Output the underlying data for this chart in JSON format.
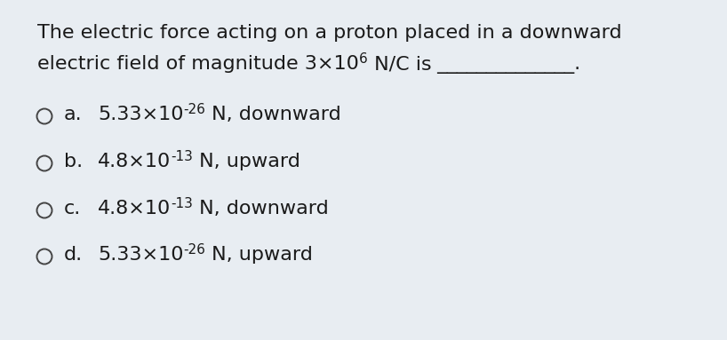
{
  "bg_color": "#e8edf2",
  "card_color": "#eef1f6",
  "question_line1": "The electric force acting on a proton placed in a downward",
  "question_line2_pre": "electric field of magnitude 3×10",
  "question_line2_sup": "6",
  "question_line2_post": " N/C is",
  "question_underline": "______________",
  "question_dot": ".",
  "options": [
    {
      "letter": "a.",
      "pre": "5.33×10",
      "sup": "-26",
      "post": " N, downward"
    },
    {
      "letter": "b.",
      "pre": "4.8×10",
      "sup": "-13",
      "post": " N, upward"
    },
    {
      "letter": "c.",
      "pre": "4.8×10",
      "sup": "-13",
      "post": " N, downward"
    },
    {
      "letter": "d.",
      "pre": "5.33×10",
      "sup": "-26",
      "post": " N, upward"
    }
  ],
  "font_size_q": 16,
  "font_size_sup_q": 11,
  "font_size_opt": 16,
  "font_size_sup_opt": 11,
  "text_color": "#1a1a1a",
  "circle_color": "#444444"
}
